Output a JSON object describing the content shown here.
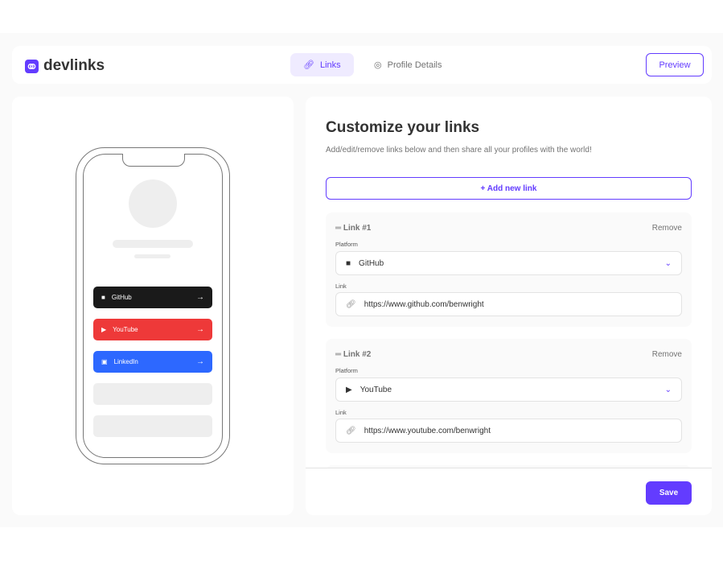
{
  "app": {
    "name": "devlinks"
  },
  "nav": {
    "links": "Links",
    "profile": "Profile Details",
    "preview": "Preview"
  },
  "preview": {
    "links": [
      {
        "platform": "GitHub",
        "color": "#1a1a1a"
      },
      {
        "platform": "YouTube",
        "color": "#ee3939"
      },
      {
        "platform": "LinkedIn",
        "color": "#2d68ff"
      }
    ]
  },
  "main": {
    "title": "Customize your links",
    "subtitle": "Add/edit/remove links below and then share all your profiles with the world!",
    "add": "+ Add new link",
    "platform_label": "Platform",
    "link_label": "Link",
    "remove": "Remove",
    "links": [
      {
        "title": "Link #1",
        "platform": "GitHub",
        "url": "https://www.github.com/benwright"
      },
      {
        "title": "Link #2",
        "platform": "YouTube",
        "url": "https://www.youtube.com/benwright"
      }
    ]
  },
  "footer": {
    "save": "Save"
  },
  "colors": {
    "accent": "#633cff"
  }
}
